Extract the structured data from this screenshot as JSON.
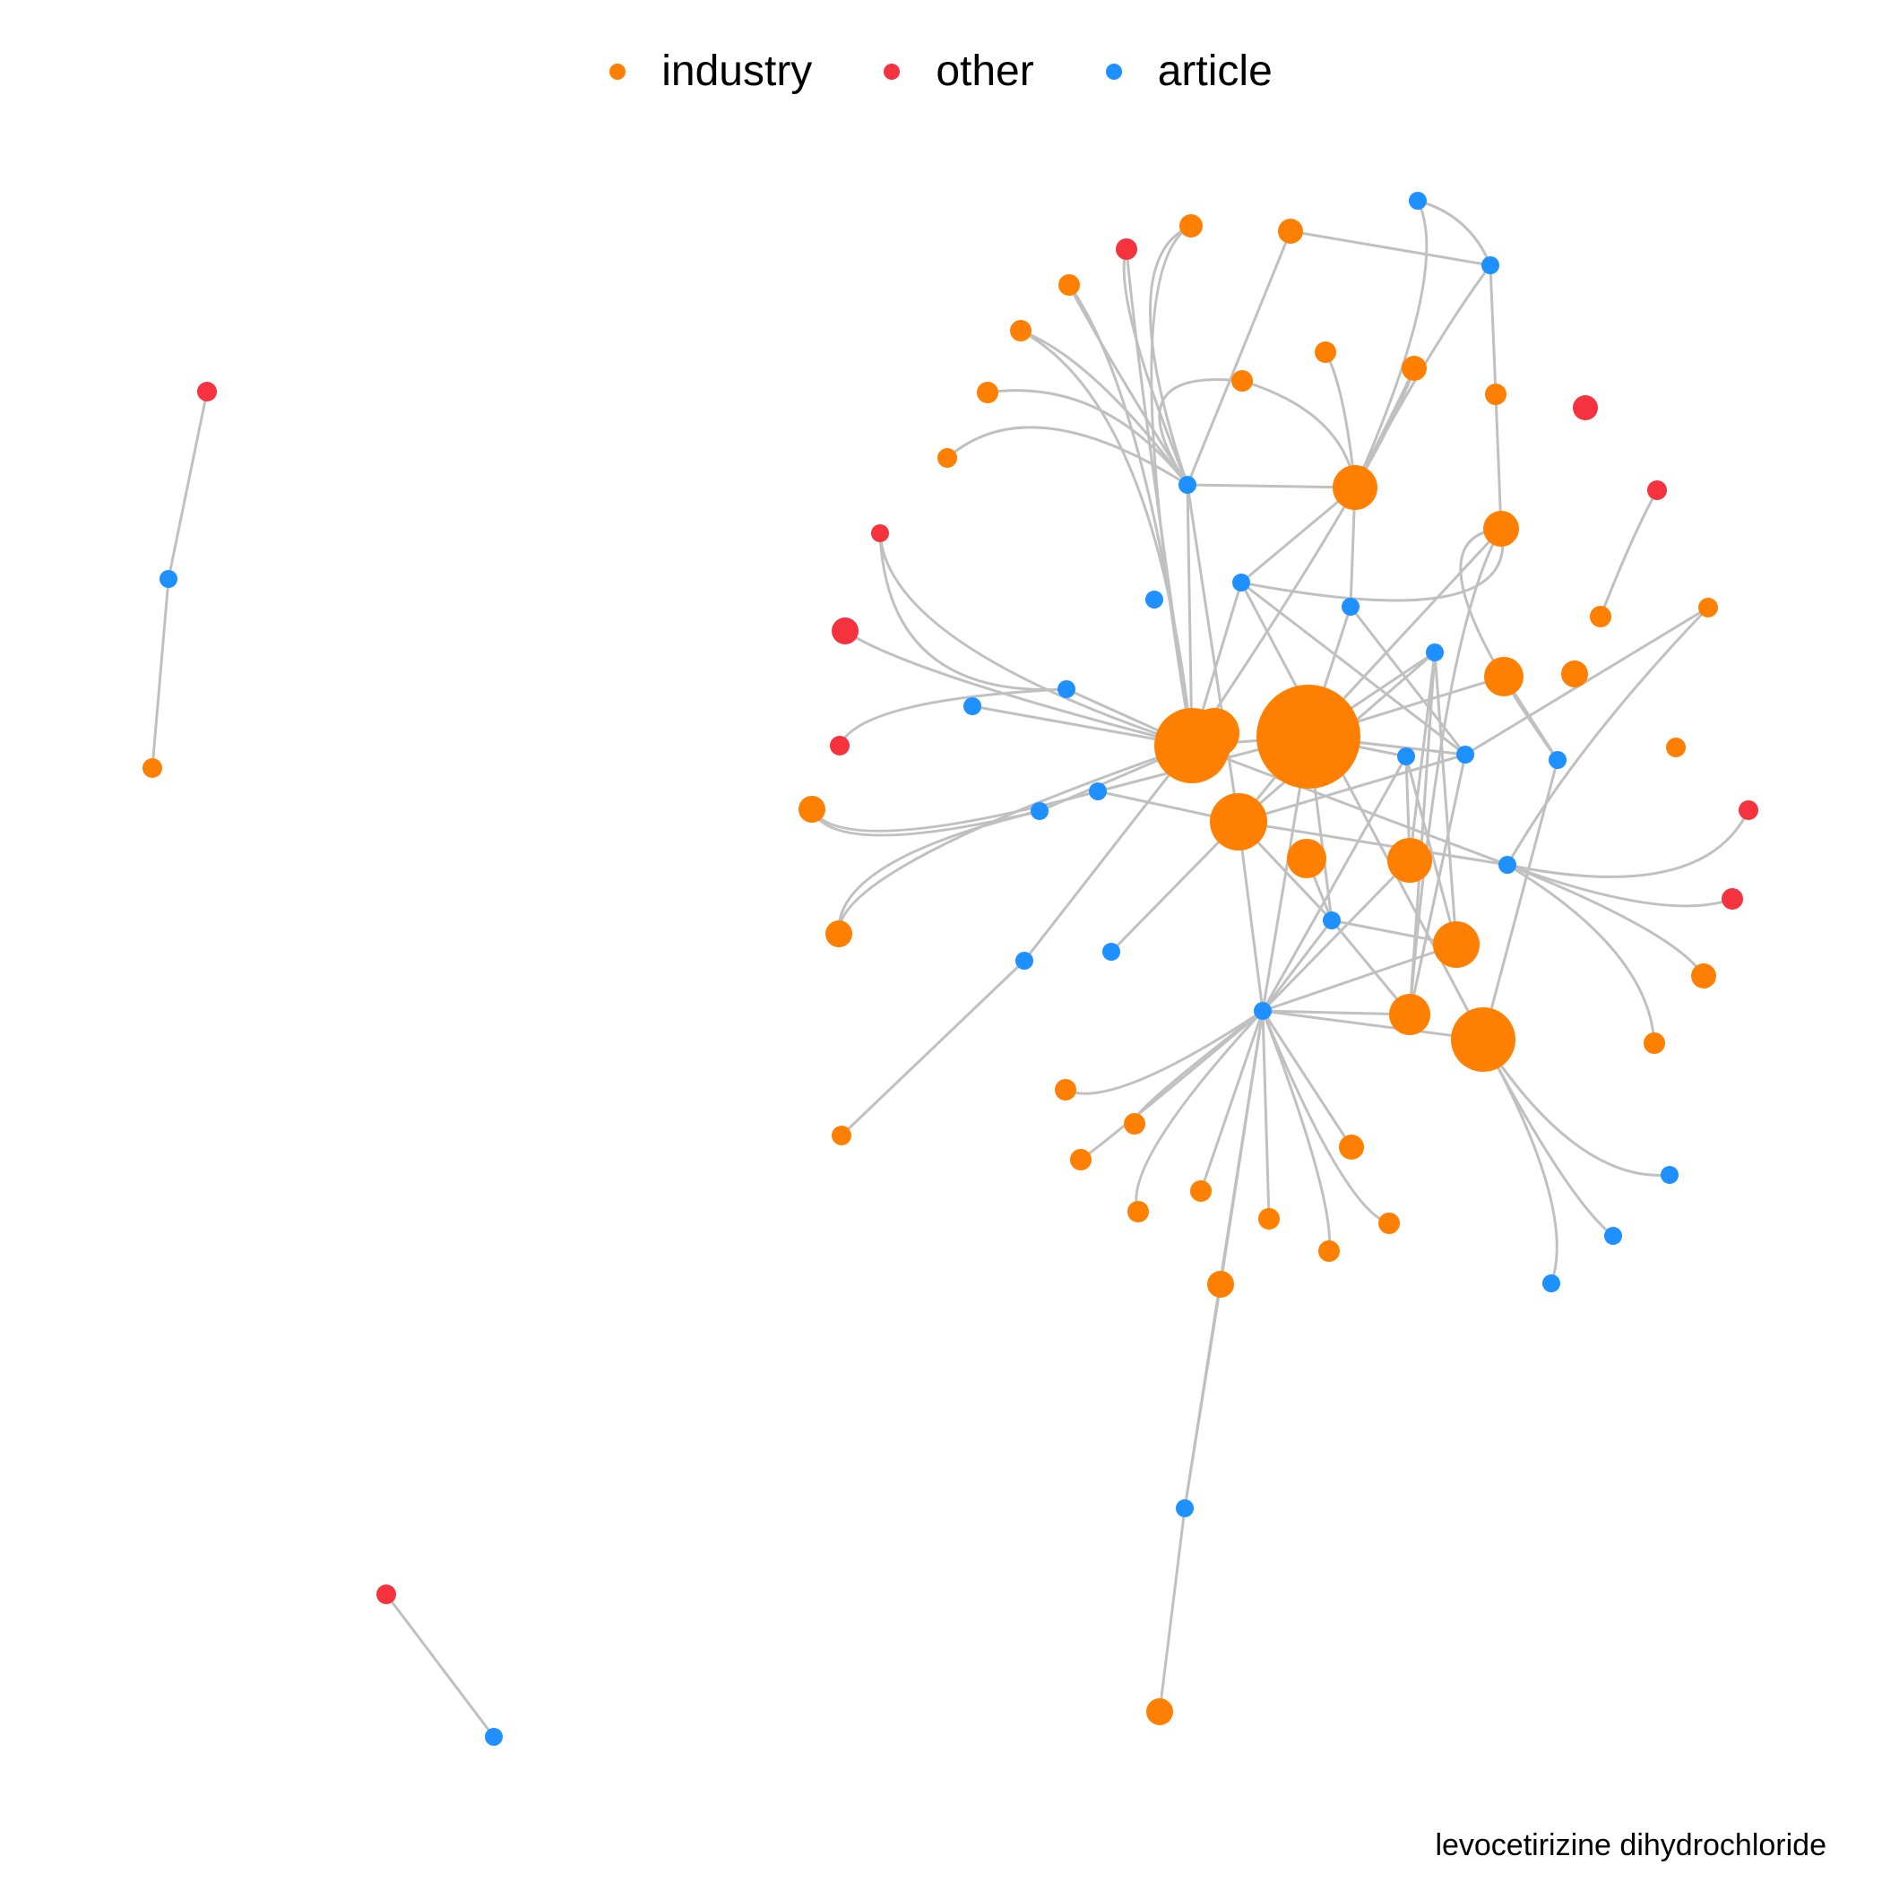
{
  "legend": [
    {
      "label": "industry",
      "color": "#FF8000"
    },
    {
      "label": "other",
      "color": "#F5333F"
    },
    {
      "label": "article",
      "color": "#1E90FF"
    }
  ],
  "caption": "levocetirizine dihydrochloride",
  "edge_color": "#C0C0C0",
  "colors": {
    "industry": "#FF8000",
    "other": "#F5333F",
    "article": "#1E90FF"
  }
}
